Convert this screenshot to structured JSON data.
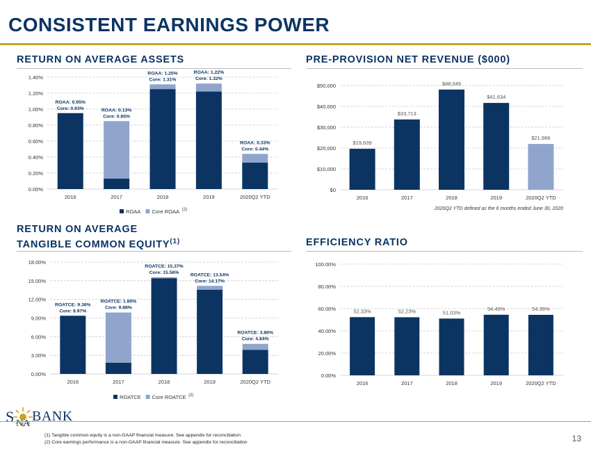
{
  "slide": {
    "title": "CONSISTENT EARNINGS POWER",
    "page_number": "13"
  },
  "logo": {
    "s": "S",
    "na": "NA",
    "bank": "BANK"
  },
  "footnotes": [
    "(1) Tangible common equity is a non-GAAP financial measure.  See appendix for reconciliation",
    "(2) Core earnings performance  is a non-GAAP financial measure. See appendix for reconciliation"
  ],
  "colors": {
    "navy": "#0b3463",
    "light": "#8fa5cc",
    "gold": "#c9a227"
  },
  "chart_data": [
    {
      "id": "roaa",
      "type": "bar",
      "title": "RETURN ON AVERAGE ASSETS",
      "categories": [
        "2016",
        "2017",
        "2018",
        "2019",
        "2020Q2 YTD"
      ],
      "series": [
        {
          "name": "ROAA",
          "values": [
            0.95,
            0.13,
            1.25,
            1.22,
            0.33
          ]
        },
        {
          "name": "Core ROAA",
          "values": [
            0.93,
            0.85,
            1.31,
            1.32,
            0.44
          ]
        }
      ],
      "legend_note": "(2)",
      "annotations": [
        {
          "line1": "ROAA:  0.95%",
          "line2": "Core: 0.93%"
        },
        {
          "line1": "ROAA:  0.13%",
          "line2": "Core: 0.85%"
        },
        {
          "line1": "ROAA:  1.25%",
          "line2": "Core: 1.31%"
        },
        {
          "line1": "ROAA:  1.22%",
          "line2": "Core: 1.32%"
        },
        {
          "line1": "ROAA:  0.33%",
          "line2": "Core: 0.44%"
        }
      ],
      "ylim": [
        0,
        1.4
      ],
      "yticks": [
        "0.00%",
        "0.20%",
        "0.40%",
        "0.60%",
        "0.80%",
        "1.00%",
        "1.20%",
        "1.40%"
      ],
      "tick_values": [
        0,
        0.2,
        0.4,
        0.6,
        0.8,
        1.0,
        1.2,
        1.4
      ],
      "legend": [
        "ROAA",
        "Core ROAA"
      ],
      "grid": true
    },
    {
      "id": "ppnr",
      "type": "bar",
      "title": "PRE-PROVISION NET REVENUE ($000)",
      "categories": [
        "2016",
        "2017",
        "2018",
        "2019",
        "2020Q2 YTD"
      ],
      "values": [
        19639,
        33713,
        48049,
        41634,
        21966
      ],
      "data_labels": [
        "$19,639",
        "$33,713",
        "$48,049",
        "$41,634",
        "$21,966"
      ],
      "highlight_last": true,
      "ylim": [
        0,
        50000
      ],
      "yticks": [
        "$0",
        "$10,000",
        "$20,000",
        "$30,000",
        "$40,000",
        "$50,000"
      ],
      "tick_values": [
        0,
        10000,
        20000,
        30000,
        40000,
        50000
      ],
      "note": "2020Q2 YTD defined as the 6 months ended June 30, 2020",
      "grid": true
    },
    {
      "id": "roatce",
      "type": "bar",
      "title_line1": "RETURN ON AVERAGE",
      "title_line2": "TANGIBLE COMMON EQUITY",
      "title_sup": "(1)",
      "categories": [
        "2016",
        "2017",
        "2018",
        "2019",
        "2020Q2 YTD"
      ],
      "series": [
        {
          "name": "ROATCE",
          "values": [
            9.36,
            1.8,
            15.37,
            13.54,
            3.86
          ]
        },
        {
          "name": "Core ROATCE",
          "values": [
            8.97,
            9.88,
            15.56,
            14.17,
            4.84
          ]
        }
      ],
      "legend_note": "(2)",
      "annotations": [
        {
          "line1": "ROATCE:  9.36%",
          "line2": "Core: 8.97%"
        },
        {
          "line1": "ROATCE:  1.80%",
          "line2": "Core: 9.88%"
        },
        {
          "line1": "ROATCE:  15.37%",
          "line2": "Core: 15.56%"
        },
        {
          "line1": "ROATCE:  13.54%",
          "line2": "Core: 14.17%"
        },
        {
          "line1": "ROATCE:  3.86%",
          "line2": "Core: 4.84%"
        }
      ],
      "ylim": [
        0,
        18
      ],
      "yticks": [
        "0.00%",
        "3.00%",
        "6.00%",
        "9.00%",
        "12.00%",
        "15.00%",
        "18.00%"
      ],
      "tick_values": [
        0,
        3,
        6,
        9,
        12,
        15,
        18
      ],
      "legend": [
        "ROATCE",
        "Core ROATCE"
      ],
      "grid": true
    },
    {
      "id": "efficiency",
      "type": "bar",
      "title": "EFFICIENCY RATIO",
      "categories": [
        "2016",
        "2017",
        "2018",
        "2019",
        "2020Q2 YTD"
      ],
      "values": [
        52.33,
        52.23,
        51.03,
        54.49,
        54.39
      ],
      "data_labels": [
        "52.33%",
        "52.23%",
        "51.03%",
        "54.49%",
        "54.39%"
      ],
      "ylim": [
        0,
        100
      ],
      "yticks": [
        "0.00%",
        "20.00%",
        "40.00%",
        "60.00%",
        "80.00%",
        "100.00%"
      ],
      "tick_values": [
        0,
        20,
        40,
        60,
        80,
        100
      ],
      "grid": true
    }
  ]
}
